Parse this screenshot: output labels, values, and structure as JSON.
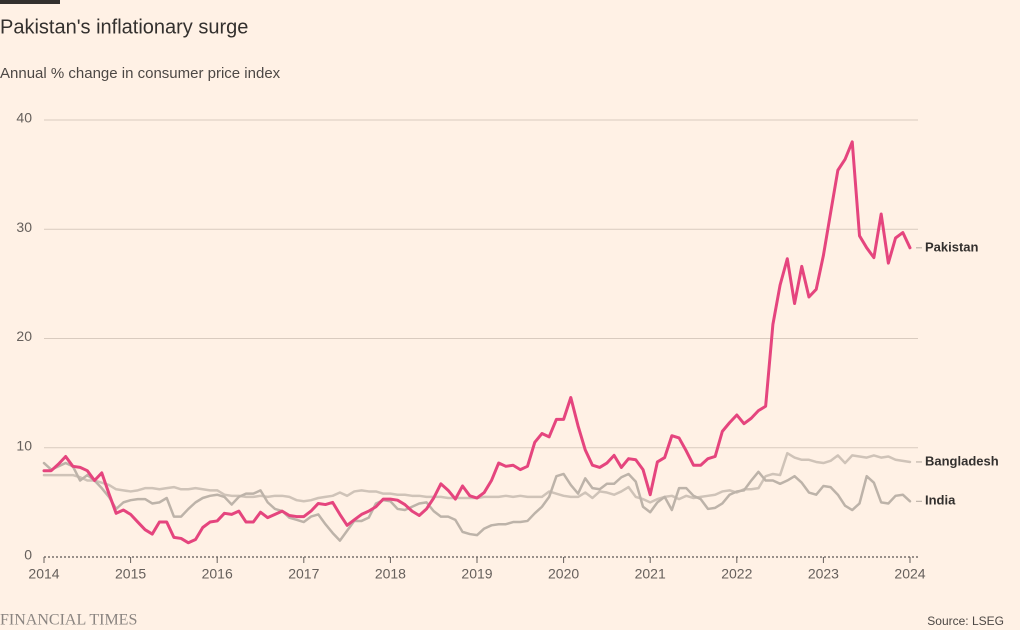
{
  "chart_data": {
    "type": "line",
    "title": "Pakistan's inflationary surge",
    "subtitle": "Annual % change in consumer price index",
    "source": "Source: LSEG",
    "brand": "FINANCIAL TIMES",
    "x": [
      2014,
      2014.083,
      2014.167,
      2014.25,
      2014.333,
      2014.417,
      2014.5,
      2014.583,
      2014.667,
      2014.75,
      2014.833,
      2014.917,
      2015,
      2015.083,
      2015.167,
      2015.25,
      2015.333,
      2015.417,
      2015.5,
      2015.583,
      2015.667,
      2015.75,
      2015.833,
      2015.917,
      2016,
      2016.083,
      2016.167,
      2016.25,
      2016.333,
      2016.417,
      2016.5,
      2016.583,
      2016.667,
      2016.75,
      2016.833,
      2016.917,
      2017,
      2017.083,
      2017.167,
      2017.25,
      2017.333,
      2017.417,
      2017.5,
      2017.583,
      2017.667,
      2017.75,
      2017.833,
      2017.917,
      2018,
      2018.083,
      2018.167,
      2018.25,
      2018.333,
      2018.417,
      2018.5,
      2018.583,
      2018.667,
      2018.75,
      2018.833,
      2018.917,
      2019,
      2019.083,
      2019.167,
      2019.25,
      2019.333,
      2019.417,
      2019.5,
      2019.583,
      2019.667,
      2019.75,
      2019.833,
      2019.917,
      2020,
      2020.083,
      2020.167,
      2020.25,
      2020.333,
      2020.417,
      2020.5,
      2020.583,
      2020.667,
      2020.75,
      2020.833,
      2020.917,
      2021,
      2021.083,
      2021.167,
      2021.25,
      2021.333,
      2021.417,
      2021.5,
      2021.583,
      2021.667,
      2021.75,
      2021.833,
      2021.917,
      2022,
      2022.083,
      2022.167,
      2022.25,
      2022.333,
      2022.417,
      2022.5,
      2022.583,
      2022.667,
      2022.75,
      2022.833,
      2022.917,
      2023,
      2023.083,
      2023.167,
      2023.25,
      2023.333,
      2023.417,
      2023.5,
      2023.583,
      2023.667,
      2023.75,
      2023.833,
      2023.917,
      2024
    ],
    "series": [
      {
        "name": "Bangladesh",
        "color": "#cfc3b8",
        "values": [
          7.5,
          7.5,
          7.5,
          7.5,
          7.5,
          7.3,
          7.0,
          7.0,
          6.8,
          6.6,
          6.2,
          6.1,
          6.0,
          6.1,
          6.3,
          6.3,
          6.2,
          6.3,
          6.4,
          6.2,
          6.2,
          6.3,
          6.2,
          6.1,
          6.1,
          5.7,
          5.6,
          5.6,
          5.5,
          5.5,
          5.6,
          5.5,
          5.6,
          5.6,
          5.5,
          5.2,
          5.1,
          5.2,
          5.4,
          5.5,
          5.6,
          5.9,
          5.6,
          6.0,
          6.1,
          6.0,
          6.0,
          5.8,
          5.8,
          5.7,
          5.7,
          5.6,
          5.6,
          5.5,
          5.5,
          5.5,
          5.4,
          5.4,
          5.4,
          5.4,
          5.4,
          5.5,
          5.5,
          5.5,
          5.6,
          5.5,
          5.6,
          5.5,
          5.5,
          5.5,
          6.0,
          5.8,
          5.6,
          5.5,
          5.5,
          5.9,
          5.4,
          6.0,
          5.9,
          5.7,
          6.0,
          6.4,
          5.5,
          5.3,
          5.0,
          5.3,
          5.5,
          5.6,
          5.3,
          5.6,
          5.4,
          5.5,
          5.6,
          5.7,
          6.0,
          6.1,
          5.9,
          6.2,
          6.2,
          6.3,
          7.4,
          7.6,
          7.5,
          9.5,
          9.1,
          8.9,
          8.9,
          8.7,
          8.6,
          8.8,
          9.3,
          8.6,
          9.3,
          9.2,
          9.1,
          9.3,
          9.1,
          9.2,
          8.9,
          8.8,
          8.7
        ]
      },
      {
        "name": "India",
        "color": "#bdb3a9",
        "values": [
          8.6,
          8.0,
          8.3,
          8.6,
          8.3,
          7.0,
          7.5,
          7.0,
          6.3,
          5.5,
          4.4,
          5.0,
          5.2,
          5.3,
          5.3,
          4.9,
          5.0,
          5.4,
          3.7,
          3.7,
          4.4,
          5.0,
          5.4,
          5.6,
          5.7,
          5.5,
          4.8,
          5.5,
          5.8,
          5.8,
          6.1,
          5.0,
          4.4,
          4.2,
          3.6,
          3.4,
          3.2,
          3.7,
          3.9,
          3.0,
          2.2,
          1.5,
          2.4,
          3.3,
          3.3,
          3.6,
          4.9,
          5.2,
          5.1,
          4.4,
          4.3,
          4.6,
          4.9,
          5.0,
          4.2,
          3.7,
          3.7,
          3.4,
          2.3,
          2.1,
          2.0,
          2.6,
          2.9,
          3.0,
          3.0,
          3.2,
          3.2,
          3.3,
          4.0,
          4.6,
          5.5,
          7.4,
          7.6,
          6.6,
          5.8,
          7.2,
          6.3,
          6.2,
          6.7,
          6.7,
          7.3,
          7.6,
          6.9,
          4.6,
          4.1,
          5.0,
          5.5,
          4.3,
          6.3,
          6.3,
          5.6,
          5.3,
          4.4,
          4.5,
          4.9,
          5.7,
          6.0,
          6.1,
          7.0,
          7.8,
          7.0,
          7.0,
          6.7,
          7.0,
          7.4,
          6.8,
          5.9,
          5.7,
          6.5,
          6.4,
          5.7,
          4.7,
          4.3,
          4.9,
          7.4,
          6.8,
          5.0,
          4.9,
          5.6,
          5.7,
          5.1
        ]
      },
      {
        "name": "Pakistan",
        "color": "#e5457e",
        "values": [
          7.9,
          7.9,
          8.5,
          9.2,
          8.3,
          8.2,
          7.9,
          7.0,
          7.7,
          5.8,
          4.0,
          4.3,
          3.9,
          3.2,
          2.5,
          2.1,
          3.2,
          3.2,
          1.8,
          1.7,
          1.3,
          1.6,
          2.7,
          3.2,
          3.3,
          4.0,
          3.9,
          4.2,
          3.2,
          3.2,
          4.1,
          3.6,
          3.9,
          4.2,
          3.8,
          3.7,
          3.7,
          4.2,
          4.9,
          4.8,
          5.0,
          3.9,
          2.9,
          3.4,
          3.9,
          4.2,
          4.6,
          5.3,
          5.3,
          5.2,
          4.8,
          4.2,
          3.8,
          4.4,
          5.4,
          6.7,
          6.1,
          5.3,
          6.5,
          5.6,
          5.4,
          5.9,
          7.0,
          8.6,
          8.3,
          8.4,
          8.0,
          8.3,
          10.5,
          11.3,
          11.0,
          12.6,
          12.6,
          14.6,
          12.0,
          9.8,
          8.4,
          8.2,
          8.6,
          9.3,
          8.2,
          9.0,
          8.9,
          8.0,
          5.7,
          8.7,
          9.1,
          11.1,
          10.9,
          9.7,
          8.4,
          8.4,
          9.0,
          9.2,
          11.5,
          12.3,
          13.0,
          12.2,
          12.7,
          13.4,
          13.8,
          21.3,
          24.9,
          27.3,
          23.2,
          26.6,
          23.8,
          24.5,
          27.6,
          31.5,
          35.4,
          36.4,
          38.0,
          29.4,
          28.3,
          27.4,
          31.4,
          26.9,
          29.2,
          29.7,
          28.3
        ]
      }
    ],
    "xlim": [
      2014,
      2024
    ],
    "xticks": [
      2014,
      2015,
      2016,
      2017,
      2018,
      2019,
      2020,
      2021,
      2022,
      2023,
      2024
    ],
    "ylim": [
      0,
      40
    ],
    "yticks": [
      0,
      10,
      20,
      30,
      40
    ],
    "grid": true
  }
}
